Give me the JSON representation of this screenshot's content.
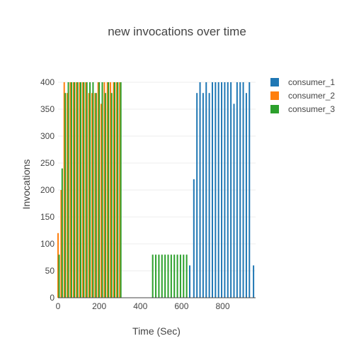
{
  "chart_data": {
    "type": "bar",
    "title": "new invocations over time",
    "xlabel": "Time (Sec)",
    "ylabel": "Invocations",
    "xlim": [
      0,
      960
    ],
    "ylim": [
      0,
      400
    ],
    "xticks": [
      0,
      200,
      400,
      600,
      800
    ],
    "yticks": [
      0,
      50,
      100,
      150,
      200,
      250,
      300,
      350,
      400
    ],
    "legend_position": "top-right",
    "grid": true,
    "series": [
      {
        "name": "consumer_1",
        "color": "#1f77b4",
        "points": [
          [
            640,
            60
          ],
          [
            660,
            220
          ],
          [
            675,
            380
          ],
          [
            690,
            400
          ],
          [
            705,
            380
          ],
          [
            720,
            400
          ],
          [
            735,
            380
          ],
          [
            750,
            400
          ],
          [
            765,
            400
          ],
          [
            780,
            400
          ],
          [
            795,
            400
          ],
          [
            810,
            400
          ],
          [
            825,
            400
          ],
          [
            840,
            400
          ],
          [
            855,
            360
          ],
          [
            870,
            400
          ],
          [
            885,
            400
          ],
          [
            900,
            400
          ],
          [
            915,
            380
          ],
          [
            930,
            400
          ],
          [
            950,
            60
          ]
        ]
      },
      {
        "name": "consumer_2",
        "color": "#ff7f0e",
        "points": [
          [
            0,
            120
          ],
          [
            15,
            200
          ],
          [
            30,
            400
          ],
          [
            45,
            380
          ],
          [
            60,
            400
          ],
          [
            75,
            400
          ],
          [
            90,
            400
          ],
          [
            105,
            400
          ],
          [
            120,
            400
          ],
          [
            135,
            400
          ],
          [
            150,
            380
          ],
          [
            165,
            380
          ],
          [
            180,
            380
          ],
          [
            195,
            400
          ],
          [
            210,
            360
          ],
          [
            225,
            400
          ],
          [
            240,
            400
          ],
          [
            255,
            400
          ],
          [
            270,
            400
          ],
          [
            285,
            400
          ],
          [
            300,
            400
          ]
        ]
      },
      {
        "name": "consumer_3",
        "color": "#2ca02c",
        "points": [
          [
            5,
            80
          ],
          [
            20,
            240
          ],
          [
            35,
            380
          ],
          [
            50,
            400
          ],
          [
            65,
            400
          ],
          [
            80,
            400
          ],
          [
            95,
            400
          ],
          [
            110,
            400
          ],
          [
            125,
            400
          ],
          [
            140,
            400
          ],
          [
            155,
            400
          ],
          [
            170,
            400
          ],
          [
            185,
            380
          ],
          [
            200,
            400
          ],
          [
            215,
            400
          ],
          [
            230,
            380
          ],
          [
            245,
            400
          ],
          [
            260,
            380
          ],
          [
            275,
            400
          ],
          [
            290,
            400
          ],
          [
            305,
            400
          ],
          [
            460,
            80
          ],
          [
            475,
            80
          ],
          [
            490,
            80
          ],
          [
            505,
            80
          ],
          [
            520,
            80
          ],
          [
            535,
            80
          ],
          [
            550,
            80
          ],
          [
            565,
            80
          ],
          [
            580,
            80
          ],
          [
            595,
            80
          ],
          [
            610,
            80
          ],
          [
            625,
            80
          ]
        ]
      }
    ]
  }
}
